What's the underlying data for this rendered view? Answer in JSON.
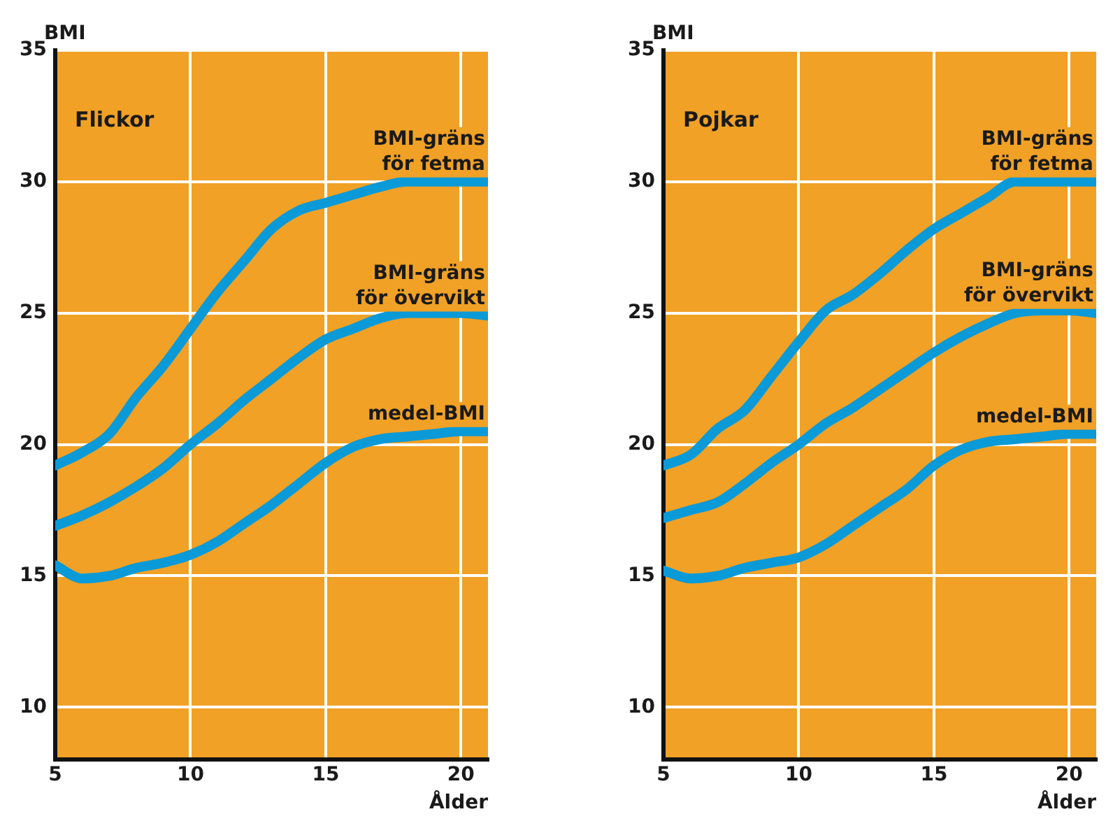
{
  "chart_data": [
    {
      "type": "line",
      "title": "Flickor",
      "xlabel": "Ålder",
      "ylabel": "BMI",
      "x": [
        5,
        6,
        7,
        8,
        9,
        10,
        11,
        12,
        13,
        14,
        15,
        16,
        17,
        18,
        19,
        20,
        21
      ],
      "series": [
        {
          "name": "BMI-gräns för fetma",
          "color": "#0a9ad8",
          "values": [
            19.2,
            19.7,
            20.4,
            21.8,
            23.0,
            24.4,
            25.8,
            27.0,
            28.2,
            28.9,
            29.2,
            29.5,
            29.8,
            30.0,
            30.0,
            30.0,
            30.0
          ]
        },
        {
          "name": "BMI-gräns för övervikt",
          "color": "#0a9ad8",
          "values": [
            16.9,
            17.3,
            17.8,
            18.4,
            19.1,
            20.0,
            20.8,
            21.7,
            22.5,
            23.3,
            24.0,
            24.4,
            24.8,
            25.0,
            25.0,
            25.0,
            24.9
          ]
        },
        {
          "name": "medel-BMI",
          "color": "#0a9ad8",
          "values": [
            15.4,
            14.9,
            15.0,
            15.3,
            15.5,
            15.8,
            16.3,
            17.0,
            17.7,
            18.5,
            19.3,
            19.9,
            20.2,
            20.3,
            20.4,
            20.5,
            20.5
          ]
        }
      ],
      "xlim": [
        5,
        21
      ],
      "ylim": [
        8,
        35
      ],
      "xticks": [
        5,
        10,
        15,
        20
      ],
      "yticks": [
        10,
        15,
        20,
        25,
        30,
        35
      ],
      "grid": true,
      "legend": false
    },
    {
      "type": "line",
      "title": "Pojkar",
      "xlabel": "Ålder",
      "ylabel": "BMI",
      "x": [
        5,
        6,
        7,
        8,
        9,
        10,
        11,
        12,
        13,
        14,
        15,
        16,
        17,
        18,
        19,
        20,
        21
      ],
      "series": [
        {
          "name": "BMI-gräns för fetma",
          "color": "#0a9ad8",
          "values": [
            19.2,
            19.6,
            20.6,
            21.3,
            22.6,
            23.9,
            25.1,
            25.7,
            26.5,
            27.4,
            28.2,
            28.8,
            29.4,
            30.0,
            30.0,
            30.0,
            30.0
          ]
        },
        {
          "name": "BMI-gräns för övervikt",
          "color": "#0a9ad8",
          "values": [
            17.2,
            17.5,
            17.8,
            18.5,
            19.3,
            20.0,
            20.8,
            21.4,
            22.1,
            22.8,
            23.5,
            24.1,
            24.6,
            25.0,
            25.1,
            25.1,
            25.0
          ]
        },
        {
          "name": "medel-BMI",
          "color": "#0a9ad8",
          "values": [
            15.2,
            14.9,
            15.0,
            15.3,
            15.5,
            15.7,
            16.2,
            16.9,
            17.6,
            18.3,
            19.2,
            19.8,
            20.1,
            20.2,
            20.3,
            20.4,
            20.4
          ]
        }
      ],
      "xlim": [
        5,
        21
      ],
      "ylim": [
        8,
        35
      ],
      "xticks": [
        5,
        10,
        15,
        20
      ],
      "yticks": [
        10,
        15,
        20,
        25,
        30,
        35
      ],
      "grid": true,
      "legend": false
    }
  ]
}
